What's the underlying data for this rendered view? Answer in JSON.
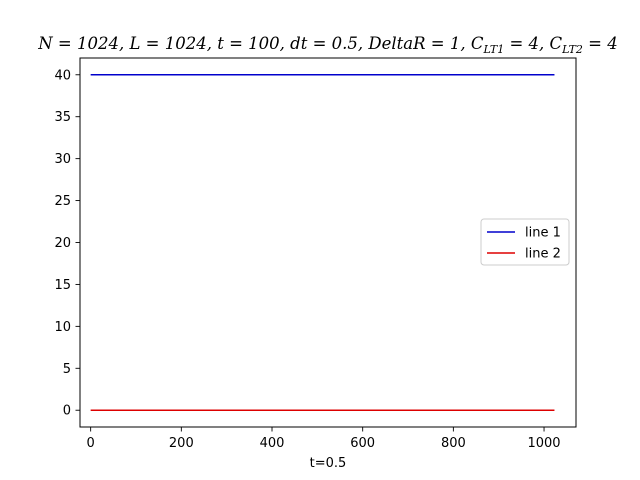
{
  "chart_data": {
    "type": "line",
    "title_parts": [
      {
        "text": "N = 1024, L = 1024, t = 100, dt = 0.5, DeltaR = 1, C",
        "sub": false
      },
      {
        "text": "LT1",
        "sub": true
      },
      {
        "text": " = 4, C",
        "sub": false
      },
      {
        "text": "LT2",
        "sub": true
      },
      {
        "text": " = 4",
        "sub": false
      }
    ],
    "xlabel": "t=0.5",
    "ylabel": "",
    "xlim": [
      -23.5,
      1070.5
    ],
    "ylim": [
      -2,
      42
    ],
    "xticks": [
      0,
      200,
      400,
      600,
      800,
      1000
    ],
    "yticks": [
      0,
      5,
      10,
      15,
      20,
      25,
      30,
      35,
      40
    ],
    "grid": false,
    "legend_position": "center-right",
    "series": [
      {
        "name": "line 1",
        "color": "#0000cc",
        "x": [
          0,
          1023
        ],
        "y": [
          40,
          40
        ]
      },
      {
        "name": "line 2",
        "color": "#dd0000",
        "x": [
          0,
          1023
        ],
        "y": [
          0,
          0
        ]
      }
    ]
  }
}
